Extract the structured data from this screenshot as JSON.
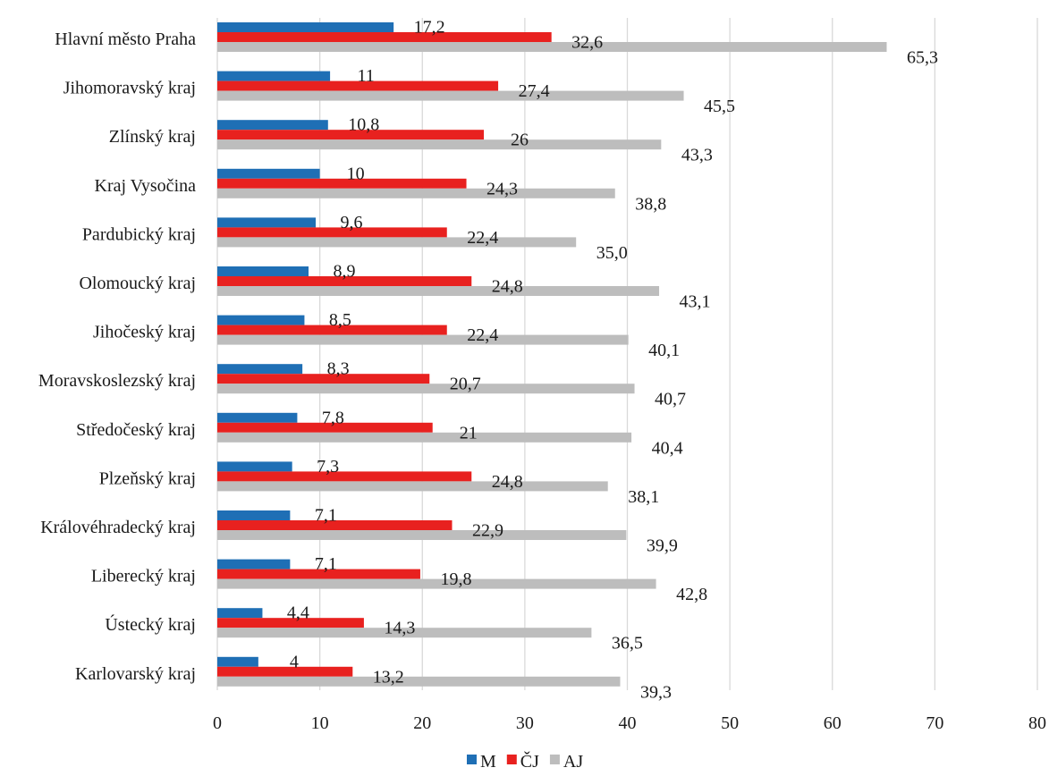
{
  "chart_data": {
    "type": "bar",
    "orientation": "horizontal",
    "categories": [
      "Hlavní město Praha",
      "Jihomoravský kraj",
      "Zlínský kraj",
      "Kraj Vysočina",
      "Pardubický kraj",
      "Olomoucký kraj",
      "Jihočeský kraj",
      "Moravskoslezský kraj",
      "Středočeský kraj",
      "Plzeňský kraj",
      "Královéhradecký kraj",
      "Liberecký kraj",
      "Ústecký kraj",
      "Karlovarský kraj"
    ],
    "series": [
      {
        "name": "M",
        "color": "#1f6fb5",
        "values": [
          17.2,
          11,
          10.8,
          10,
          9.6,
          8.9,
          8.5,
          8.3,
          7.8,
          7.3,
          7.1,
          7.1,
          4.4,
          4
        ],
        "labels": [
          "17,2",
          "11",
          "10,8",
          "10",
          "9,6",
          "8,9",
          "8,5",
          "8,3",
          "7,8",
          "7,3",
          "7,1",
          "7,1",
          "4,4",
          "4"
        ]
      },
      {
        "name": "ČJ",
        "color": "#e8211f",
        "values": [
          32.6,
          27.4,
          26,
          24.3,
          22.4,
          24.8,
          22.4,
          20.7,
          21,
          24.8,
          22.9,
          19.8,
          14.3,
          13.2
        ],
        "labels": [
          "32,6",
          "27,4",
          "26",
          "24,3",
          "22,4",
          "24,8",
          "22,4",
          "20,7",
          "21",
          "24,8",
          "22,9",
          "19,8",
          "14,3",
          "13,2"
        ]
      },
      {
        "name": "AJ",
        "color": "#bdbdbd",
        "values": [
          65.3,
          45.5,
          43.3,
          38.8,
          35.0,
          43.1,
          40.1,
          40.7,
          40.4,
          38.1,
          39.9,
          42.8,
          36.5,
          39.3
        ],
        "labels": [
          "65,3",
          "45,5",
          "43,3",
          "38,8",
          "35,0",
          "43,1",
          "40,1",
          "40,7",
          "40,4",
          "38,1",
          "39,9",
          "42,8",
          "36,5",
          "39,3"
        ]
      }
    ],
    "xlim": [
      0,
      80
    ],
    "xticks": [
      0,
      10,
      20,
      30,
      40,
      50,
      60,
      70,
      80
    ],
    "xtick_labels": [
      "0",
      "10",
      "20",
      "30",
      "40",
      "50",
      "60",
      "70",
      "80"
    ],
    "grid": true,
    "legend": "bottom",
    "title": "",
    "xlabel": "",
    "ylabel": ""
  }
}
